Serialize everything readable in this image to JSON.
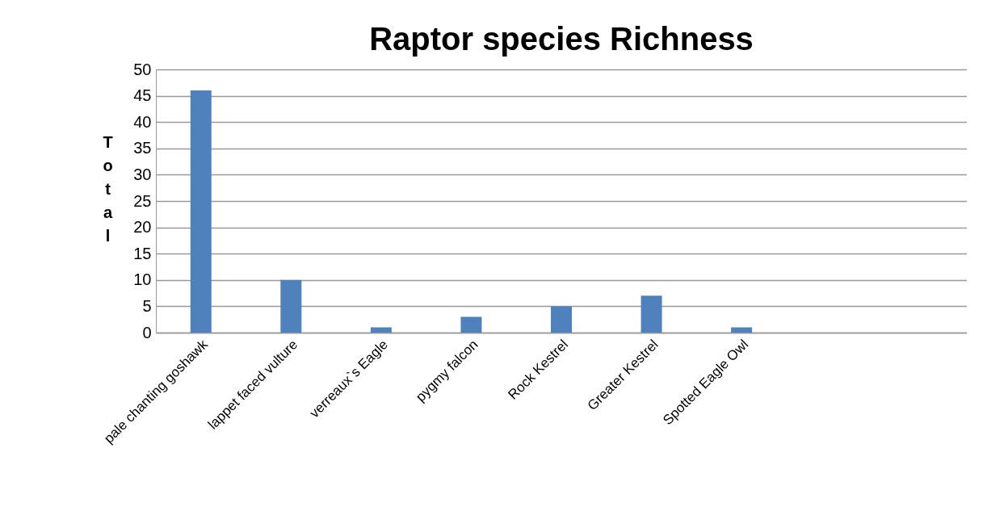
{
  "chart_data": {
    "type": "bar",
    "title": "Raptor species Richness",
    "ylabel": "Total",
    "categories": [
      "pale chanting goshawk",
      "lappet faced vulture",
      "verreaux`s Eagle",
      "pygmy falcon",
      "Rock Kestrel",
      "Greater Kestrel",
      "Spotted Eagle Owl",
      null,
      null
    ],
    "values": [
      46,
      10,
      1,
      3,
      5,
      7,
      1,
      null,
      null
    ],
    "color": "#4f81bd",
    "ylim": [
      0,
      50
    ],
    "yticks": [
      0,
      5,
      10,
      15,
      20,
      25,
      30,
      35,
      40,
      45,
      50
    ],
    "grid": "y"
  }
}
